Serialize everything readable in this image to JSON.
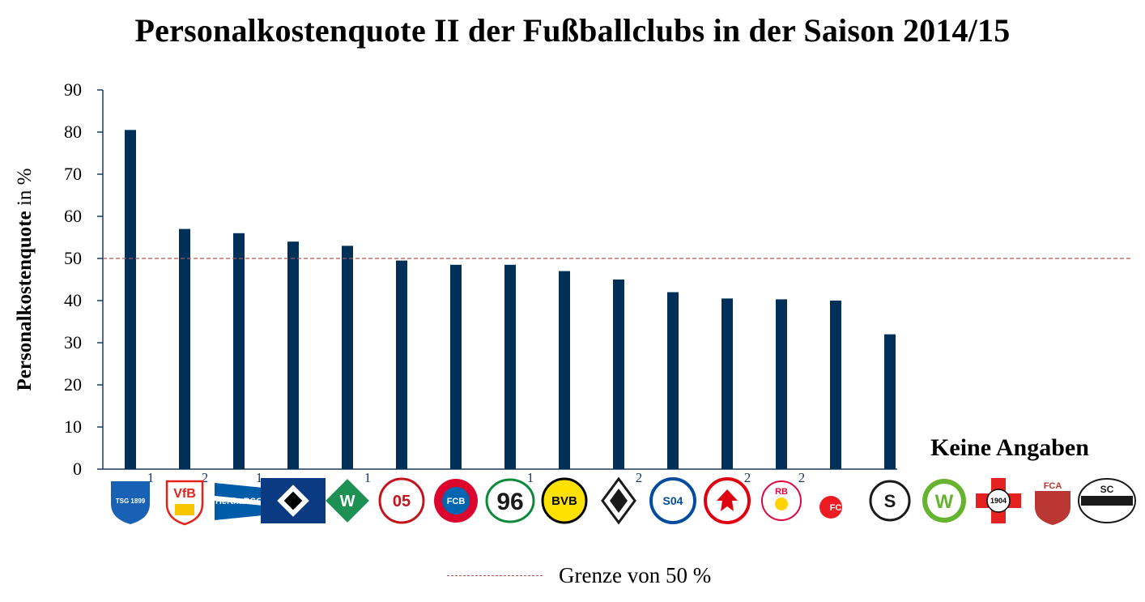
{
  "title": "Personalkostenquote II der Fußballclubs in der Saison 2014/15",
  "chart_data": {
    "type": "bar",
    "ylabel_bold": "Personalkostenquote",
    "ylabel_rest": " in %",
    "ylim": [
      0,
      90
    ],
    "yticks": [
      0,
      10,
      20,
      30,
      40,
      50,
      60,
      70,
      80,
      90
    ],
    "threshold": 50,
    "bar_color": "#003057",
    "threshold_color": "#c0504d",
    "categories": [
      "TSG 1899 Hoffenheim",
      "VfB Stuttgart",
      "Hertha BSC",
      "Hamburger SV",
      "Werder Bremen",
      "1. FSV Mainz 05",
      "FC Bayern München",
      "Hannover 96",
      "Borussia Dortmund",
      "Borussia Mönchengladbach",
      "FC Schalke 04",
      "Eintracht Frankfurt",
      "RB Leipzig",
      "1. FC Köln",
      "SC Freiburg",
      "VfL Wolfsburg",
      "Bayer 04 Leverkusen",
      "FC Augsburg",
      "SC Paderborn 07"
    ],
    "values": [
      80.5,
      57,
      56,
      54,
      53,
      49.5,
      48.5,
      48.5,
      47,
      45,
      42,
      40.5,
      40.3,
      40,
      32,
      null,
      null,
      null,
      null
    ],
    "footnotes": [
      "1",
      "2",
      "1",
      "",
      "1",
      "",
      "",
      "1",
      "",
      "2",
      "",
      "2",
      "2",
      "",
      "",
      "",
      "",
      "",
      ""
    ],
    "no_data_label": "Keine Angaben",
    "legend": "Grenze von 50 %"
  },
  "logos": [
    {
      "icon": "hoffenheim-crest",
      "text": "TSG 1899",
      "color": "#1961b5"
    },
    {
      "icon": "stuttgart-crest",
      "text": "VfB",
      "color": "#e32219"
    },
    {
      "icon": "hertha-flag",
      "text": "HerthaBSC",
      "color": "#005ca9"
    },
    {
      "icon": "hsv-diamond",
      "text": "",
      "color": "#0a3a82"
    },
    {
      "icon": "werder-diamond",
      "text": "W",
      "color": "#1d9053"
    },
    {
      "icon": "mainz-crest",
      "text": "05",
      "color": "#c3141e"
    },
    {
      "icon": "bayern-roundel",
      "text": "FCB",
      "color": "#dc052d"
    },
    {
      "icon": "hannover-96",
      "text": "96",
      "color": "#1a1a1a"
    },
    {
      "icon": "bvb-circle",
      "text": "BVB",
      "color": "#fde100"
    },
    {
      "icon": "gladbach-crest",
      "text": "",
      "color": "#1a1a1a"
    },
    {
      "icon": "schalke-circle",
      "text": "S04",
      "color": "#004d9d"
    },
    {
      "icon": "frankfurt-eagle",
      "text": "",
      "color": "#e1000f"
    },
    {
      "icon": "leipzig-bulls",
      "text": "RB",
      "color": "#dd0741"
    },
    {
      "icon": "koeln-goat",
      "text": "FC",
      "color": "#ed1c24"
    },
    {
      "icon": "freiburg-circle",
      "text": "S",
      "color": "#1a1a1a"
    },
    {
      "icon": "wolfsburg-w",
      "text": "W",
      "color": "#65b32e"
    },
    {
      "icon": "leverkusen-cross",
      "text": "1904",
      "color": "#e32221"
    },
    {
      "icon": "augsburg-crest",
      "text": "FCA",
      "color": "#ba3733"
    },
    {
      "icon": "paderborn-crest",
      "text": "SC",
      "color": "#1a1a1a"
    }
  ]
}
